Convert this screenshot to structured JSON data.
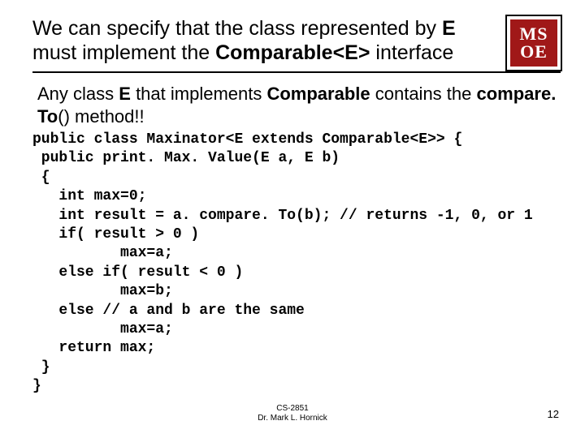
{
  "title": {
    "part1": "We can specify that the class represented by ",
    "e": "E",
    "part2": " must implement the ",
    "comparable": "Comparable<E>",
    "part3": " interface"
  },
  "subtitle": {
    "part1": "Any class ",
    "e": "E",
    "part2": " that implements ",
    "comp": "Comparable",
    "part3": " contains the ",
    "method": "compare. To",
    "part4": "() method!!"
  },
  "code": {
    "l1": "public class Maxinator<E extends Comparable<E>> {",
    "l2": " public print. Max. Value(E a, E b)",
    "l3": " {",
    "l4": "   int max=0;",
    "l5": "   int result = a. compare. To(b); // returns -1, 0, or 1",
    "l6": "   if( result > 0 )",
    "l7": "          max=a;",
    "l8": "   else if( result < 0 )",
    "l9": "          max=b;",
    "l10": "   else // a and b are the same",
    "l11": "          max=a;",
    "l12": "   return max;",
    "l13": " }",
    "l14": "}"
  },
  "logo": {
    "line1": "MS",
    "line2": "OE",
    "bg_color": "#a01818",
    "text_color": "#ffffff"
  },
  "footer": {
    "line1": "CS-2851",
    "line2": "Dr. Mark L. Hornick"
  },
  "page_number": "12"
}
